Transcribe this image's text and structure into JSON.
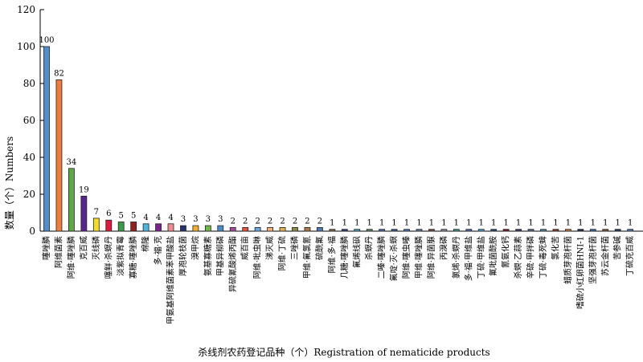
{
  "chart_data": {
    "type": "bar",
    "title": "",
    "xlabel": "杀线剂农药登记品种（个）Registration of nematicide products",
    "ylabel": "数量（个）Numbers",
    "ylim": [
      0,
      120
    ],
    "yticks": [
      0,
      20,
      40,
      60,
      80,
      100,
      120
    ],
    "grid": false,
    "legend": "none",
    "categories": [
      "噻唑膦",
      "阿维菌素",
      "阿维·噻唑膦",
      "克百威",
      "灭线磷",
      "噻鲜·杀螟丹",
      "淡紫拟青霉",
      "寡糖·噻唑膦",
      "棉隆",
      "多·福·克",
      "甲氨基阿维菌素苯甲酸盐",
      "厚孢轮枝菌",
      "溴甲烷",
      "氨基寡糖素",
      "甲基异柳磷",
      "异硫氰酸烯丙酯",
      "威百亩",
      "阿维·吡虫啉",
      "涕灭威",
      "阿维·丁硫",
      "三唑磷",
      "甲维·氟氯氰",
      "硫酰氟",
      "阿维·多·福",
      "几糖·噻唑膦",
      "氟烯线砜",
      "杀螟丹",
      "二嗪·噻唑膦",
      "氟啶·灭·杀螟",
      "阿维·噻虫嗪",
      "甲维·噻唑膦",
      "阿维·异菌脲",
      "丙溴磷",
      "氯烯·杀螟丹",
      "多·福·甲维盐",
      "丁硫·甲维盐",
      "氟吡菌酰胺",
      "氰氨化钙",
      "杀螟·乙蒜素",
      "辛硫·甲拌磷",
      "丁硫·毒死蜱",
      "氯化苦",
      "蜡质芽孢杆菌",
      "嗜硫小红卵菌HNI-1",
      "坚强芽孢杆菌",
      "苏云金杆菌",
      "苦参碱",
      "丁硫克百威"
    ],
    "values": [
      100,
      82,
      34,
      19,
      7,
      6,
      5,
      5,
      4,
      4,
      4,
      3,
      3,
      3,
      3,
      2,
      2,
      2,
      2,
      2,
      2,
      2,
      2,
      1,
      1,
      1,
      1,
      1,
      1,
      1,
      1,
      1,
      1,
      1,
      1,
      1,
      1,
      1,
      1,
      1,
      1,
      1,
      1,
      1,
      1,
      1,
      1,
      1
    ],
    "colors": [
      "#4f8fd0",
      "#ee7f3a",
      "#5ea845",
      "#5b2391",
      "#f2dd22",
      "#e3183c",
      "#3a9b4a",
      "#9b1c1c",
      "#4bb4e0",
      "#7c2290",
      "#f08c90",
      "#24326e",
      "#f3ad31",
      "#70b947",
      "#4a8ccc",
      "#a84a9c",
      "#e8523c",
      "#6aa8df",
      "#f6b17a",
      "#e0b44a",
      "#8a8a4a",
      "#b07a48",
      "#4a7ab8",
      "#7a6a4a",
      "#2f3f72",
      "#4aa0c8",
      "#5a8a6a",
      "#4a68a8",
      "#3a5a88",
      "#4a78b8",
      "#5a7a98",
      "#7a4a48",
      "#8a8a9a",
      "#3a9a8a",
      "#4a6ab0",
      "#4aa0d0",
      "#2a4a7a",
      "#7a1a2a",
      "#3a3a6a",
      "#5a6a8a",
      "#4a8aa8",
      "#8a3a2a",
      "#c87a3a",
      "#2a2a4a",
      "#3a6aa8",
      "#7a5a3a",
      "#2a3a5a",
      "#4a7ab8"
    ]
  }
}
